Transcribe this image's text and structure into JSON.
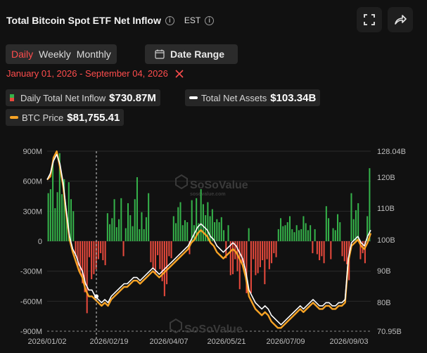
{
  "header": {
    "title": "Total Bitcoin Spot ETF Net Inflow",
    "timezone": "EST",
    "info_icon": "info-icon",
    "expand_icon": "expand-icon",
    "share_icon": "share-icon"
  },
  "tabs": [
    {
      "label": "Daily",
      "active": true
    },
    {
      "label": "Weekly",
      "active": false
    },
    {
      "label": "Monthly",
      "active": false
    }
  ],
  "date_range": {
    "label": "Date Range",
    "icon": "calendar-icon",
    "value": "January 01, 2026 - September 04, 2026",
    "clear_icon": "close-icon"
  },
  "legend": [
    {
      "label": "Daily Total Net Inflow",
      "value": "$730.87M",
      "colors": [
        "#35b34a",
        "#e94a3d"
      ]
    },
    {
      "label": "Total Net Assets",
      "value": "$103.34B",
      "color": "#ffffff"
    },
    {
      "label": "BTC Price",
      "value": "$81,755.41",
      "color": "#f7a325"
    }
  ],
  "watermark": "SoSoValue",
  "watermark_sub": "sosovalue.com",
  "colors": {
    "inflow": "#35b34a",
    "outflow": "#e94a3d",
    "assets": "#ffffff",
    "price": "#f7a325",
    "accent": "#ff4d4d"
  },
  "chart_data": {
    "type": "bar",
    "left_ticks": [
      "900M",
      "600M",
      "300M",
      "0",
      "-300M",
      "-600M",
      "-900M"
    ],
    "right_ticks": [
      "128.04B",
      "120B",
      "110B",
      "100B",
      "90B",
      "80B",
      "70.95B"
    ],
    "x_ticks": [
      "2026/01/02",
      "2026/02/19",
      "2026/04/07",
      "2026/05/21",
      "2026/07/09",
      "2026/09/03"
    ],
    "ylim_inflow": [
      -900,
      900
    ],
    "ylim_assets": [
      70.95,
      128.04
    ],
    "inflow_values_musd": [
      480,
      520,
      790,
      330,
      490,
      880,
      470,
      620,
      280,
      590,
      420,
      300,
      -150,
      -260,
      -330,
      -420,
      -510,
      -720,
      -160,
      -380,
      -330,
      -280,
      -180,
      -120,
      -190,
      -240,
      280,
      170,
      230,
      420,
      140,
      220,
      430,
      -150,
      130,
      380,
      260,
      150,
      420,
      640,
      120,
      290,
      120,
      240,
      480,
      -210,
      -280,
      -330,
      -140,
      -280,
      -400,
      -550,
      -430,
      -150,
      -170,
      250,
      180,
      340,
      390,
      160,
      210,
      190,
      -130,
      410,
      160,
      430,
      180,
      520,
      370,
      260,
      390,
      250,
      320,
      190,
      220,
      190,
      240,
      110,
      -170,
      160,
      -340,
      -330,
      -180,
      -300,
      -480,
      -220,
      -260,
      -520,
      130,
      -520,
      -180,
      -340,
      -320,
      -260,
      -190,
      -430,
      -180,
      -280,
      -220,
      -120,
      -160,
      120,
      230,
      150,
      160,
      190,
      250,
      120,
      90,
      160,
      110,
      120,
      250,
      180,
      110,
      160,
      -120,
      120,
      -130,
      -190,
      -150,
      -220,
      350,
      230,
      -180,
      130,
      110,
      270,
      190,
      -150,
      -200,
      -230,
      -390,
      480,
      220,
      310,
      380,
      -180,
      -120,
      -220,
      250,
      730
    ],
    "net_assets_b": [
      119,
      121,
      125,
      127,
      124,
      118,
      109,
      101,
      97,
      95,
      92,
      90,
      86,
      84,
      84,
      82,
      81,
      80,
      81,
      80,
      82,
      83,
      84,
      85,
      86,
      86,
      87,
      88,
      88,
      87,
      88,
      89,
      90,
      91,
      90,
      89,
      90,
      91,
      92,
      93,
      94,
      95,
      96,
      97,
      98,
      100,
      102,
      104,
      105,
      104,
      103,
      101,
      100,
      98,
      97,
      96,
      97,
      98,
      99,
      98,
      96,
      94,
      90,
      84,
      82,
      80,
      79,
      78,
      79,
      78,
      76,
      75,
      74,
      73,
      74,
      75,
      76,
      77,
      78,
      79,
      78,
      79,
      80,
      81,
      80,
      79,
      79,
      80,
      80,
      79,
      79,
      80,
      80,
      81,
      94,
      99,
      100,
      101,
      99,
      98,
      101,
      103
    ],
    "btc_price_series": [
      119,
      120,
      126,
      128,
      123,
      117,
      108,
      100,
      96,
      93,
      90,
      88,
      84,
      82,
      82,
      81,
      80,
      79,
      80,
      79,
      81,
      82,
      83,
      84,
      85,
      85,
      86,
      87,
      87,
      86,
      87,
      88,
      89,
      90,
      89,
      88,
      89,
      90,
      91,
      92,
      93,
      94,
      95,
      96,
      97,
      99,
      100,
      102,
      103,
      102,
      101,
      99,
      98,
      96,
      95,
      94,
      95,
      96,
      97,
      96,
      94,
      92,
      88,
      82,
      80,
      78,
      77,
      76,
      77,
      76,
      74,
      73,
      72,
      72,
      73,
      74,
      75,
      76,
      77,
      78,
      77,
      78,
      79,
      80,
      79,
      78,
      78,
      79,
      79,
      78,
      78,
      79,
      79,
      80,
      93,
      98,
      99,
      100,
      98,
      97,
      99,
      102
    ],
    "crosshair_date": "2026/02/19"
  }
}
